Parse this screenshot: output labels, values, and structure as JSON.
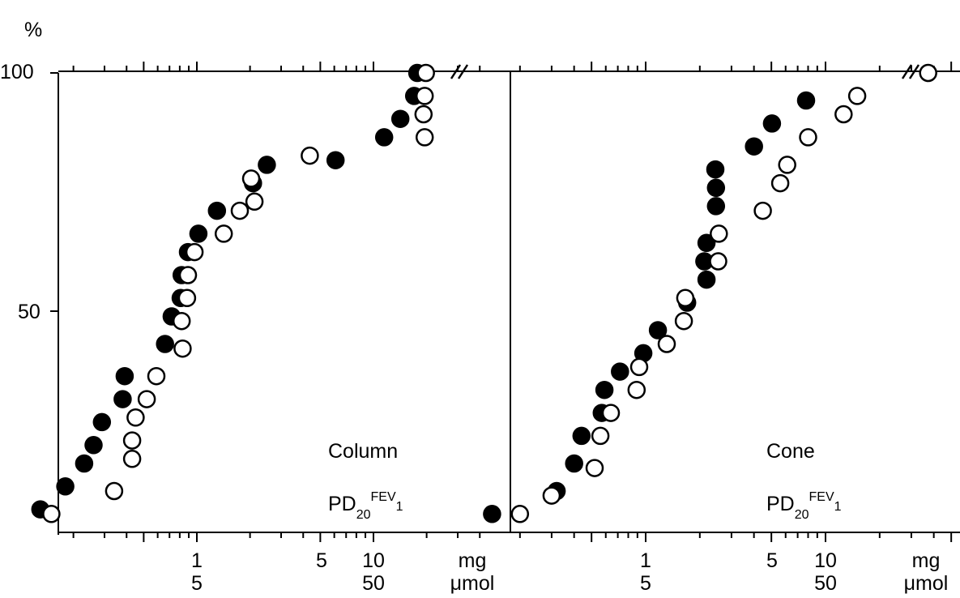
{
  "y_unit": "%",
  "y_ticks": [
    "100",
    "50"
  ],
  "x_tick_labels": [
    {
      "mg": "1",
      "umol": "5"
    },
    {
      "mg": "5",
      "umol": ""
    },
    {
      "mg": "10",
      "umol": "50"
    }
  ],
  "x_unit_mg": "mg",
  "x_unit_umol": "μmol",
  "chart_data": [
    {
      "type": "scatter",
      "panel_label": "Column",
      "measure_label": {
        "base": "PD",
        "sub1": "20",
        "mid": "FEV",
        "sub2": "1"
      },
      "x_scale": "log",
      "xlim": [
        0.1,
        50
      ],
      "ylim": [
        0,
        100
      ],
      "series": [
        {
          "marker": "filled",
          "points": [
            [
              0.13,
              5
            ],
            [
              0.18,
              10
            ],
            [
              0.23,
              15
            ],
            [
              0.26,
              19
            ],
            [
              0.29,
              24
            ],
            [
              0.38,
              29
            ],
            [
              0.39,
              34
            ],
            [
              0.66,
              41
            ],
            [
              0.72,
              47
            ],
            [
              0.81,
              51
            ],
            [
              0.82,
              56
            ],
            [
              0.89,
              61
            ],
            [
              1.02,
              65
            ],
            [
              1.3,
              70
            ],
            [
              2.08,
              76
            ],
            [
              2.49,
              80
            ],
            [
              6.1,
              81
            ],
            [
              11.5,
              86
            ],
            [
              14.2,
              90
            ],
            [
              17.0,
              95
            ],
            [
              17.7,
              100
            ]
          ]
        },
        {
          "marker": "open",
          "points": [
            [
              0.15,
              4
            ],
            [
              0.34,
              9
            ],
            [
              0.43,
              16
            ],
            [
              0.43,
              20
            ],
            [
              0.45,
              25
            ],
            [
              0.52,
              29
            ],
            [
              0.59,
              34
            ],
            [
              0.83,
              40
            ],
            [
              0.82,
              46
            ],
            [
              0.88,
              51
            ],
            [
              0.89,
              56
            ],
            [
              0.97,
              61
            ],
            [
              1.42,
              65
            ],
            [
              1.75,
              70
            ],
            [
              2.12,
              72
            ],
            [
              2.03,
              77
            ],
            [
              4.36,
              82
            ],
            [
              19.5,
              86
            ],
            [
              19.2,
              91
            ],
            [
              19.5,
              95
            ],
            [
              19.8,
              100
            ]
          ]
        }
      ]
    },
    {
      "type": "scatter",
      "panel_label": "Cone",
      "measure_label": {
        "base": "PD",
        "sub1": "20",
        "mid": "FEV",
        "sub2": "1"
      },
      "x_scale": "log",
      "xlim": [
        0.1,
        50
      ],
      "ylim": [
        0,
        100
      ],
      "series": [
        {
          "marker": "filled",
          "points": [
            [
              0.14,
              4
            ],
            [
              0.32,
              9
            ],
            [
              0.4,
              15
            ],
            [
              0.44,
              21
            ],
            [
              0.57,
              26
            ],
            [
              0.59,
              31
            ],
            [
              0.72,
              35
            ],
            [
              0.97,
              39
            ],
            [
              1.17,
              44
            ],
            [
              1.7,
              50
            ],
            [
              2.18,
              55
            ],
            [
              2.12,
              59
            ],
            [
              2.18,
              63
            ],
            [
              2.46,
              71
            ],
            [
              2.46,
              75
            ],
            [
              2.44,
              79
            ],
            [
              4.0,
              84
            ],
            [
              5.04,
              89
            ],
            [
              7.8,
              94
            ]
          ]
        },
        {
          "marker": "open",
          "points": [
            [
              0.2,
              4
            ],
            [
              0.3,
              8
            ],
            [
              0.52,
              14
            ],
            [
              0.56,
              21
            ],
            [
              0.64,
              26
            ],
            [
              0.89,
              31
            ],
            [
              0.92,
              36
            ],
            [
              1.31,
              41
            ],
            [
              1.63,
              46
            ],
            [
              1.66,
              51
            ],
            [
              2.53,
              59
            ],
            [
              2.55,
              65
            ],
            [
              4.48,
              70
            ],
            [
              5.6,
              76
            ],
            [
              6.12,
              80
            ],
            [
              8.0,
              86
            ],
            [
              12.6,
              91
            ],
            [
              15.0,
              95
            ],
            [
              37.2,
              100
            ]
          ]
        }
      ]
    }
  ]
}
